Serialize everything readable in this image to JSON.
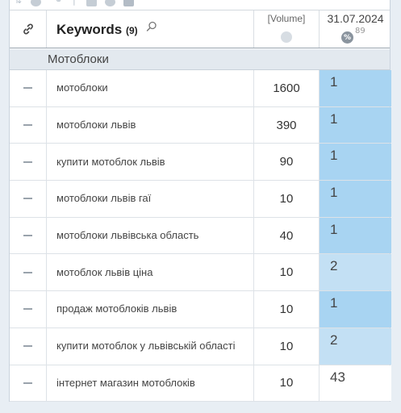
{
  "colors": {
    "rank_top": "#a8d4f2",
    "rank_mid": "#c3e0f4",
    "rank_none": "#ffffff"
  },
  "header": {
    "link_icon": "link-icon",
    "keywords_label": "Keywords",
    "keywords_count": "(9)",
    "search_icon": "search-icon",
    "volume_label": "[Volume]",
    "globe_icon": "globe-icon",
    "date_label": "31.07.2024",
    "percent_badge": "%",
    "percent_value": "89"
  },
  "group": {
    "label": "Мотоблоки"
  },
  "rows": [
    {
      "keyword": "мотоблоки",
      "volume": "1600",
      "position": "1",
      "tone": "rank_top"
    },
    {
      "keyword": "мотоблоки львів",
      "volume": "390",
      "position": "1",
      "tone": "rank_top"
    },
    {
      "keyword": "купити мотоблок львів",
      "volume": "90",
      "position": "1",
      "tone": "rank_top"
    },
    {
      "keyword": "мотоблоки львів гаї",
      "volume": "10",
      "position": "1",
      "tone": "rank_top"
    },
    {
      "keyword": "мотоблоки львівська область",
      "volume": "40",
      "position": "1",
      "tone": "rank_top"
    },
    {
      "keyword": "мотоблок львів ціна",
      "volume": "10",
      "position": "2",
      "tone": "rank_mid"
    },
    {
      "keyword": "продаж мотоблоків львів",
      "volume": "10",
      "position": "1",
      "tone": "rank_top"
    },
    {
      "keyword": "купити мотоблок у львівській області",
      "volume": "10",
      "position": "2",
      "tone": "rank_mid"
    },
    {
      "keyword": "інтернет магазин мотоблоків",
      "volume": "10",
      "position": "43",
      "tone": "rank_none"
    }
  ]
}
